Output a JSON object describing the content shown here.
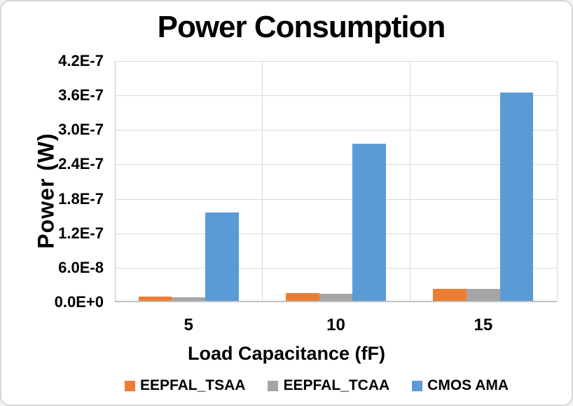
{
  "chart_data": {
    "type": "bar",
    "title": "Power Consumption",
    "xlabel": "Load Capacitance (fF)",
    "ylabel": "Power (W)",
    "categories": [
      "5",
      "10",
      "15"
    ],
    "series": [
      {
        "name": "EEPFAL_TSAA",
        "color": "#ED7D31",
        "values": [
          7e-09,
          1.3e-08,
          2.1e-08
        ]
      },
      {
        "name": "EEPFAL_TCAA",
        "color": "#A5A5A5",
        "values": [
          6e-09,
          1.2e-08,
          2.05e-08
        ]
      },
      {
        "name": "CMOS AMA",
        "color": "#5B9BD5",
        "values": [
          1.54e-07,
          2.73e-07,
          3.63e-07
        ]
      }
    ],
    "ylim": [
      0,
      4.2e-07
    ],
    "ytick_labels": [
      "0.0E+0",
      "6.0E-8",
      "1.2E-7",
      "1.8E-7",
      "2.4E-7",
      "3.0E-7",
      "3.6E-7",
      "4.2E-7"
    ],
    "grid": true,
    "legend_position": "bottom"
  },
  "style": {
    "gridline_color": "#D9D9D9",
    "axis_line_color": "#BFBFBF",
    "text_color": "#000000",
    "background": "#FFFFFF",
    "border_color": "#D7D7D7"
  }
}
